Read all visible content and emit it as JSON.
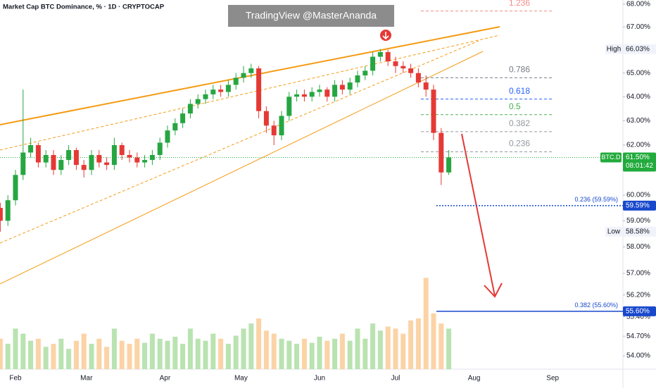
{
  "chart_data": {
    "type": "candlestick",
    "title": "Market Cap BTC Dominance, % · 1D · CRYPTOCAP",
    "watermark": "TradingView @MasterAnanda",
    "x_labels": [
      "Feb",
      "Mar",
      "Apr",
      "May",
      "Jun",
      "Jul",
      "Aug",
      "Sep"
    ],
    "log_scale": true,
    "ylim": [
      53.53,
      68.19
    ],
    "yticks": [
      {
        "value": 68,
        "label": "68.00%"
      },
      {
        "value": 67,
        "label": "67.00%"
      },
      {
        "value": 65,
        "label": "65.00%"
      },
      {
        "value": 64,
        "label": "64.00%"
      },
      {
        "value": 63,
        "label": "63.00%"
      },
      {
        "value": 62,
        "label": "62.00%"
      },
      {
        "value": 60,
        "label": "60.00%"
      },
      {
        "value": 59,
        "label": "59.00%"
      },
      {
        "value": 58,
        "label": "58.00%"
      },
      {
        "value": 57,
        "label": "57.00%"
      },
      {
        "value": 56.2,
        "label": "56.20%"
      },
      {
        "value": 55.4,
        "label": "55.40%"
      },
      {
        "value": 54.7,
        "label": "54.70%"
      },
      {
        "value": 54,
        "label": "54.00%"
      }
    ],
    "up_color": "#26a641",
    "down_color": "#e53935",
    "volume_up_color": "#b9e3b0",
    "volume_down_color": "#fbd3a6",
    "open": [
      59.5,
      59.0,
      59.8,
      60.8,
      61.7,
      62.0,
      61.3,
      61.6,
      61.0,
      61.4,
      61.8,
      61.2,
      61.0,
      61.6,
      61.3,
      61.2,
      62.0,
      61.6,
      61.5,
      61.3,
      61.4,
      61.6,
      62.1,
      62.6,
      62.9,
      63.3,
      63.7,
      63.9,
      64.1,
      64.3,
      64.2,
      64.5,
      64.8,
      65.0,
      65.2,
      63.4,
      62.8,
      62.4,
      63.2,
      64.0,
      64.1,
      64.0,
      64.2,
      64.3,
      64.0,
      64.5,
      64.3,
      64.6,
      64.9,
      65.1,
      65.7,
      65.9,
      65.5,
      65.3,
      65.2,
      65.0,
      64.6,
      64.3,
      62.5,
      60.9
    ],
    "high": [
      59.7,
      60.0,
      61.0,
      64.3,
      62.3,
      62.1,
      61.8,
      61.8,
      61.6,
      62.0,
      61.9,
      61.4,
      61.8,
      61.8,
      61.5,
      62.3,
      62.1,
      61.8,
      61.7,
      61.6,
      61.8,
      62.3,
      62.8,
      63.1,
      63.5,
      63.9,
      64.1,
      64.3,
      64.5,
      64.5,
      64.7,
      65.0,
      65.3,
      65.4,
      65.3,
      63.6,
      63.0,
      63.4,
      64.2,
      64.3,
      64.3,
      64.4,
      64.5,
      64.4,
      64.7,
      64.7,
      64.8,
      65.1,
      65.3,
      65.9,
      66.03,
      66.0,
      65.7,
      65.5,
      65.4,
      65.2,
      64.9,
      64.5,
      62.7,
      61.8
    ],
    "low": [
      58.58,
      58.8,
      59.6,
      60.6,
      61.5,
      61.1,
      61.1,
      60.8,
      60.8,
      61.2,
      61.0,
      60.7,
      60.8,
      61.1,
      61.0,
      61.0,
      61.4,
      61.3,
      61.1,
      61.1,
      61.2,
      61.4,
      61.9,
      62.4,
      62.7,
      63.1,
      63.5,
      63.7,
      63.9,
      64.0,
      64.0,
      64.3,
      64.6,
      64.8,
      63.1,
      62.5,
      62.0,
      62.2,
      63.0,
      63.8,
      63.8,
      63.8,
      64.0,
      63.8,
      63.8,
      64.1,
      64.1,
      64.4,
      64.7,
      64.9,
      65.5,
      65.3,
      65.0,
      65.0,
      64.8,
      64.4,
      64.0,
      62.2,
      60.4,
      60.8
    ],
    "close": [
      59.0,
      59.8,
      60.8,
      61.7,
      62.0,
      61.3,
      61.6,
      61.0,
      61.4,
      61.8,
      61.2,
      61.0,
      61.6,
      61.3,
      61.2,
      62.0,
      61.6,
      61.5,
      61.3,
      61.4,
      61.6,
      62.1,
      62.6,
      62.9,
      63.3,
      63.7,
      63.9,
      64.1,
      64.3,
      64.2,
      64.5,
      64.8,
      65.0,
      65.2,
      63.4,
      62.8,
      62.4,
      63.2,
      64.0,
      64.1,
      64.0,
      64.2,
      64.3,
      64.0,
      64.5,
      64.3,
      64.6,
      64.9,
      65.1,
      65.7,
      65.9,
      65.5,
      65.3,
      65.2,
      65.0,
      64.6,
      64.3,
      62.5,
      60.9,
      61.5
    ],
    "volume": [
      30,
      25,
      40,
      35,
      28,
      30,
      22,
      25,
      30,
      20,
      28,
      35,
      25,
      30,
      22,
      40,
      28,
      25,
      30,
      26,
      35,
      30,
      28,
      32,
      25,
      40,
      30,
      28,
      35,
      30,
      25,
      33,
      40,
      45,
      50,
      38,
      35,
      30,
      28,
      25,
      30,
      26,
      32,
      28,
      30,
      35,
      28,
      40,
      30,
      45,
      38,
      42,
      40,
      35,
      48,
      50,
      90,
      55,
      45,
      40
    ],
    "vlim": [
      0,
      100
    ],
    "fib_levels": [
      {
        "ratio": 1.236,
        "price": 67.7,
        "color": "#f28b8b"
      },
      {
        "ratio": 0.786,
        "price": 64.8,
        "color": "#787b86"
      },
      {
        "ratio": 0.618,
        "price": 63.9,
        "color": "#2962ff"
      },
      {
        "ratio": 0.5,
        "price": 63.25,
        "color": "#4caf50"
      },
      {
        "ratio": 0.382,
        "price": 62.55,
        "color": "#9598a1"
      },
      {
        "ratio": 0.236,
        "price": 61.73,
        "color": "#9598a1"
      }
    ],
    "targets": [
      {
        "text": "0.236 (59.59%)",
        "value": 59.59,
        "label": "59.59%",
        "dashed": true
      },
      {
        "text": "0.382 (55.60%)",
        "value": 55.6,
        "label": "55.60%",
        "dashed": false
      }
    ],
    "target_color": "#1848cc",
    "high_marker": {
      "text": "High",
      "value": 66.03,
      "label": "66.03%"
    },
    "low_marker": {
      "text": "Low",
      "value": 58.58,
      "label": "58.58%"
    },
    "last": {
      "symbol": "BTC.D",
      "value": 61.5,
      "label": "61.50%",
      "countdown": "08:01:42",
      "color": "#22ab3c"
    }
  }
}
